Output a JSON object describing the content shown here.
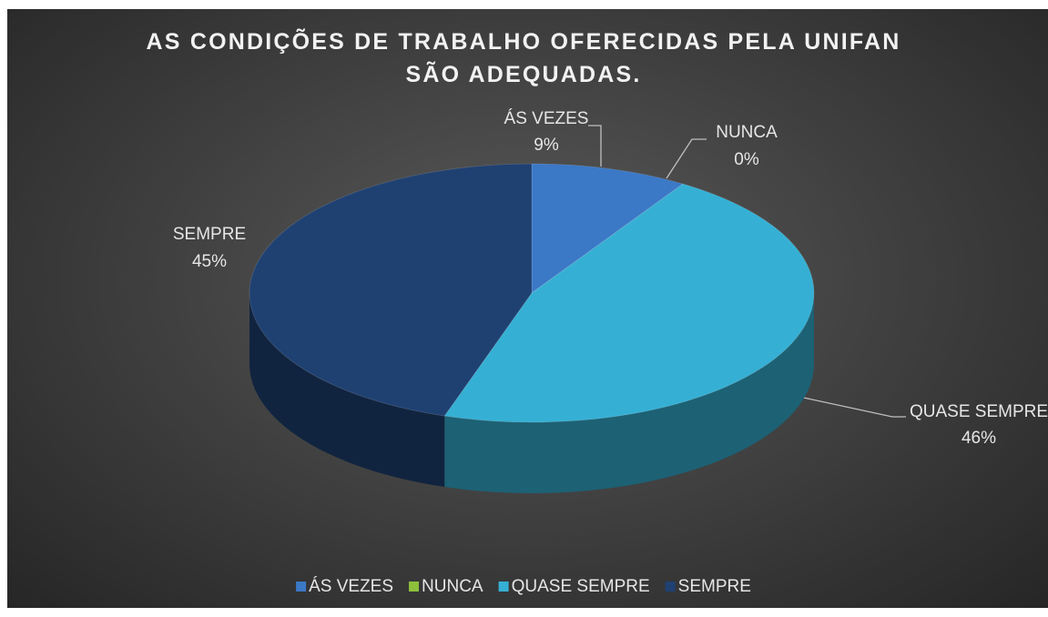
{
  "chart_data": {
    "type": "pie",
    "title": "AS CONDIÇÕES DE TRABALHO OFERECIDAS PELA UNIFAN SÃO ADEQUADAS.",
    "categories": [
      "ÁS VEZES",
      "NUNCA",
      "QUASE SEMPRE",
      "SEMPRE"
    ],
    "values": [
      9,
      0,
      46,
      45
    ],
    "value_labels": [
      "9%",
      "0%",
      "46%",
      "45%"
    ],
    "colors": [
      "#3b78c6",
      "#8dbf3c",
      "#35b0d4",
      "#1f4172"
    ],
    "legend": "bottom"
  }
}
